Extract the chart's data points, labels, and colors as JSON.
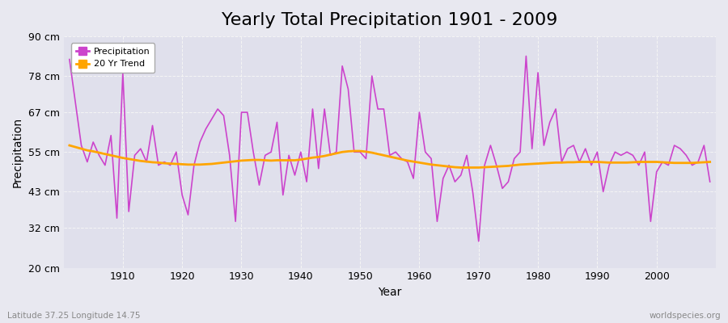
{
  "title": "Yearly Total Precipitation 1901 - 2009",
  "xlabel": "Year",
  "ylabel": "Precipitation",
  "subtitle": "Latitude 37.25 Longitude 14.75",
  "watermark": "worldspecies.org",
  "ylim": [
    20,
    90
  ],
  "yticks": [
    20,
    32,
    43,
    55,
    67,
    78,
    90
  ],
  "ytick_labels": [
    "20 cm",
    "32 cm",
    "43 cm",
    "55 cm",
    "67 cm",
    "78 cm",
    "90 cm"
  ],
  "xlim": [
    1900,
    2010
  ],
  "xticks": [
    1910,
    1920,
    1930,
    1940,
    1950,
    1960,
    1970,
    1980,
    1990,
    2000
  ],
  "years": [
    1901,
    1902,
    1903,
    1904,
    1905,
    1906,
    1907,
    1908,
    1909,
    1910,
    1911,
    1912,
    1913,
    1914,
    1915,
    1916,
    1917,
    1918,
    1919,
    1920,
    1921,
    1922,
    1923,
    1924,
    1925,
    1926,
    1927,
    1928,
    1929,
    1930,
    1931,
    1932,
    1933,
    1934,
    1935,
    1936,
    1937,
    1938,
    1939,
    1940,
    1941,
    1942,
    1943,
    1944,
    1945,
    1946,
    1947,
    1948,
    1949,
    1950,
    1951,
    1952,
    1953,
    1954,
    1955,
    1956,
    1957,
    1958,
    1959,
    1960,
    1961,
    1962,
    1963,
    1964,
    1965,
    1966,
    1967,
    1968,
    1969,
    1970,
    1971,
    1972,
    1973,
    1974,
    1975,
    1976,
    1977,
    1978,
    1979,
    1980,
    1981,
    1982,
    1983,
    1984,
    1985,
    1986,
    1987,
    1988,
    1989,
    1990,
    1991,
    1992,
    1993,
    1994,
    1995,
    1996,
    1997,
    1998,
    1999,
    2000,
    2001,
    2002,
    2003,
    2004,
    2005,
    2006,
    2007,
    2008,
    2009
  ],
  "precip": [
    83,
    70,
    57,
    52,
    58,
    54,
    51,
    60,
    35,
    79,
    37,
    54,
    56,
    52,
    63,
    51,
    52,
    51,
    55,
    42,
    36,
    51,
    58,
    62,
    65,
    68,
    66,
    54,
    34,
    67,
    67,
    55,
    45,
    54,
    55,
    64,
    42,
    54,
    48,
    55,
    46,
    68,
    50,
    68,
    54,
    55,
    81,
    74,
    55,
    55,
    53,
    78,
    68,
    68,
    54,
    55,
    53,
    52,
    47,
    67,
    55,
    53,
    34,
    47,
    51,
    46,
    48,
    54,
    43,
    28,
    51,
    57,
    51,
    44,
    46,
    53,
    55,
    84,
    56,
    79,
    57,
    64,
    68,
    52,
    56,
    57,
    52,
    56,
    51,
    55,
    43,
    51,
    55,
    54,
    55,
    54,
    51,
    55,
    34,
    49,
    52,
    51,
    57,
    56,
    54,
    51,
    52,
    57,
    46
  ],
  "trend": [
    57.0,
    56.5,
    56.0,
    55.5,
    55.2,
    54.8,
    54.4,
    54.0,
    53.6,
    53.2,
    52.9,
    52.6,
    52.3,
    52.1,
    51.9,
    51.8,
    51.6,
    51.5,
    51.4,
    51.3,
    51.2,
    51.2,
    51.2,
    51.3,
    51.4,
    51.6,
    51.8,
    52.0,
    52.2,
    52.4,
    52.5,
    52.6,
    52.6,
    52.5,
    52.4,
    52.5,
    52.5,
    52.5,
    52.5,
    52.7,
    53.0,
    53.3,
    53.5,
    53.8,
    54.2,
    54.6,
    55.0,
    55.2,
    55.3,
    55.3,
    55.1,
    54.8,
    54.4,
    54.0,
    53.6,
    53.2,
    52.8,
    52.4,
    52.1,
    51.8,
    51.5,
    51.2,
    51.0,
    50.8,
    50.6,
    50.4,
    50.3,
    50.3,
    50.3,
    50.3,
    50.4,
    50.5,
    50.6,
    50.7,
    50.8,
    51.0,
    51.2,
    51.3,
    51.4,
    51.5,
    51.6,
    51.7,
    51.8,
    51.8,
    51.9,
    51.9,
    52.0,
    52.0,
    52.0,
    52.0,
    51.9,
    51.8,
    51.8,
    51.8,
    51.8,
    51.9,
    52.0,
    52.0,
    52.0,
    52.0,
    51.9,
    51.8,
    51.7,
    51.7,
    51.7,
    51.7,
    51.8,
    51.9,
    52.0
  ],
  "precip_color": "#cc44cc",
  "trend_color": "#FFA500",
  "bg_color": "#e8e8f0",
  "plot_bg_color": "#e0e0ec",
  "grid_color": "#f5f5f5",
  "title_fontsize": 16,
  "axis_label_fontsize": 10,
  "tick_fontsize": 9,
  "legend_label_precip": "Precipitation",
  "legend_label_trend": "20 Yr Trend"
}
